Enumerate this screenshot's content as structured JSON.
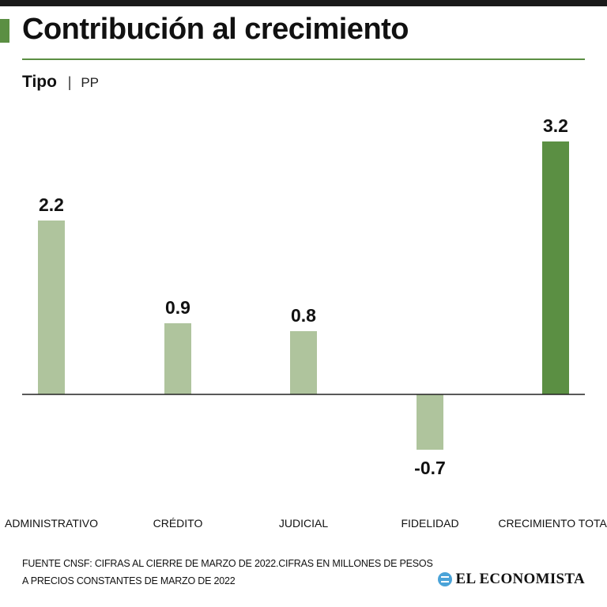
{
  "header": {
    "title": "Contribución al crecimiento",
    "subtitle_label": "Tipo",
    "subtitle_sep": "|",
    "subtitle_unit": "PP"
  },
  "chart_data": {
    "type": "bar",
    "title": "Contribución al crecimiento",
    "xlabel": "",
    "ylabel": "PP",
    "categories": [
      "ADMINISTRATIVO",
      "CRÉDITO",
      "JUDICIAL",
      "FIDELIDAD",
      "CRECIMIENTO TOTAL"
    ],
    "values": [
      2.2,
      0.9,
      0.8,
      -0.7,
      3.2
    ],
    "value_labels": [
      "2.2",
      "0.9",
      "0.8",
      "-0.7",
      "3.2"
    ],
    "highlight_index": 4,
    "ylim": [
      -0.7,
      3.2
    ],
    "grid": false,
    "colors": {
      "bar": "#afc49d",
      "highlight": "#5b8f43",
      "baseline": "#222222"
    }
  },
  "footer": {
    "source_line1": "FUENTE CNSF: CIFRAS AL CIERRE DE  MARZO DE 2022.CIFRAS EN MILLONES DE PESOS",
    "source_line2": "A PRECIOS CONSTANTES DE MARZO DE 2022",
    "brand": "EL ECONOMISTA",
    "brand_icon": "el-economista-logo-icon"
  },
  "colors": {
    "accent": "#5b8f43",
    "text": "#111111"
  }
}
